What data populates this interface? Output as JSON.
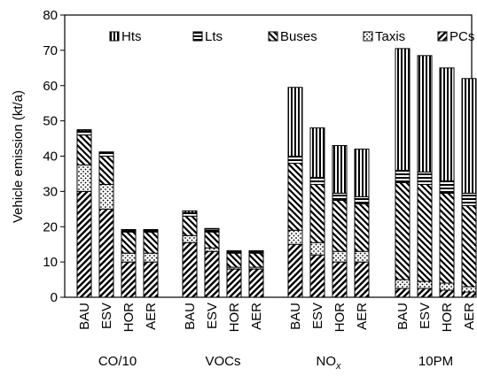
{
  "chart_data": {
    "type": "bar",
    "stacked": true,
    "title": "",
    "xlabel": "",
    "ylabel": "Vehicle emission (kt/a)",
    "ylim": [
      0,
      80
    ],
    "yticks": [
      0,
      10,
      20,
      30,
      40,
      50,
      60,
      70,
      80
    ],
    "legend_position": "top",
    "groups": [
      {
        "label": "CO/10",
        "categories": [
          "BAU",
          "ESV",
          "HOR",
          "AER"
        ]
      },
      {
        "label": "VOCs",
        "categories": [
          "BAU",
          "ESV",
          "HOR",
          "AER"
        ]
      },
      {
        "label": "NO",
        "label_sub": "x",
        "categories": [
          "BAU",
          "ESV",
          "HOR",
          "AER"
        ]
      },
      {
        "label": "10PM",
        "categories": [
          "BAU",
          "ESV",
          "HOR",
          "AER"
        ]
      }
    ],
    "series": [
      {
        "name": "PCs",
        "pattern": "diagonal-hatch",
        "values": [
          30,
          25,
          10,
          10,
          15.5,
          13,
          8,
          8,
          15,
          12,
          10,
          10,
          2.5,
          2.5,
          2,
          1.5
        ]
      },
      {
        "name": "Taxis",
        "pattern": "dotted",
        "values": [
          7.5,
          7,
          2.5,
          2.5,
          2,
          1,
          0.5,
          0.5,
          4,
          3.5,
          3,
          3,
          2.5,
          2,
          2,
          1.5
        ]
      },
      {
        "name": "Buses",
        "pattern": "diagonal-hatch-inverse",
        "values": [
          8.5,
          8,
          6,
          6,
          5.5,
          4.5,
          4,
          4,
          19,
          16.5,
          14.5,
          13.5,
          27.5,
          27.5,
          25.5,
          23
        ]
      },
      {
        "name": "Lts",
        "pattern": "horizontal-lines",
        "values": [
          1.2,
          1.0,
          0.5,
          0.5,
          1.0,
          0.8,
          0.5,
          0.5,
          2,
          2,
          2,
          2,
          3.5,
          3.5,
          3.5,
          3.5
        ]
      },
      {
        "name": "Hts",
        "pattern": "vertical-lines",
        "values": [
          0.3,
          0.2,
          0.2,
          0.2,
          0.5,
          0.2,
          0.2,
          0.2,
          19.5,
          14,
          13.5,
          13.5,
          34.5,
          33,
          32,
          32.5
        ]
      }
    ],
    "legend_order": [
      "Hts",
      "Lts",
      "Buses",
      "Taxis",
      "PCs"
    ]
  }
}
